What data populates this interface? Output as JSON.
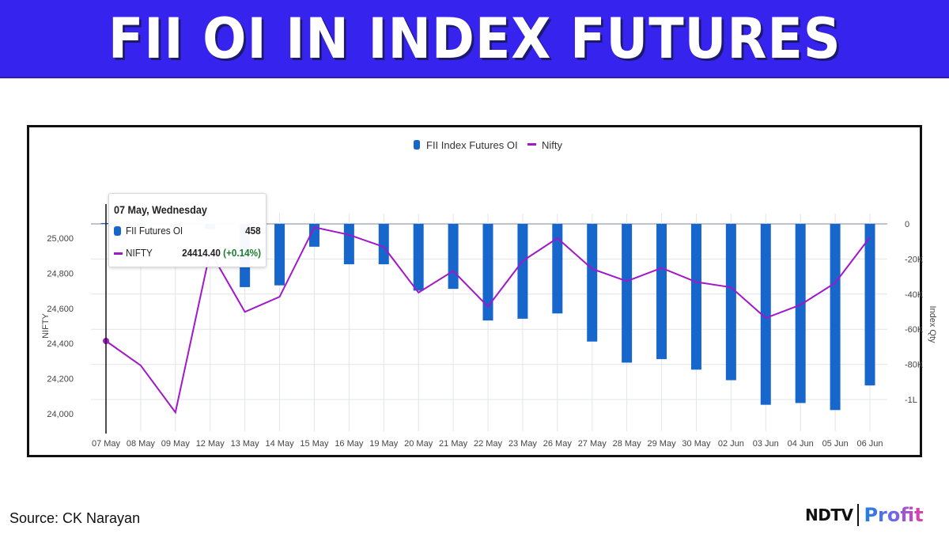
{
  "header": {
    "title": "FII OI IN INDEX FUTURES"
  },
  "colors": {
    "banner": "#3623ee",
    "bar": "#1766cc",
    "line": "#a117c9",
    "positive_change": "#1b7a2f",
    "grid": "#e2e4ea"
  },
  "tooltip": {
    "date": "07 May, Wednesday",
    "rows": [
      {
        "marker": "bar-marker",
        "label": "FII Futures OI",
        "value": "458",
        "change": ""
      },
      {
        "marker": "line-marker",
        "label": "NIFTY",
        "value": "24414.40",
        "change": "(+0.14%)"
      }
    ]
  },
  "footer": {
    "source": "Source: CK Narayan",
    "logo_ndtv": "NDTV",
    "logo_profit": "Profit"
  },
  "chart_data": {
    "type": "bar+line",
    "title": "",
    "legend": [
      "FII Index Futures OI",
      "Nifty"
    ],
    "legend_position": "top-center",
    "categories": [
      "07 May",
      "08 May",
      "09 May",
      "12 May",
      "13 May",
      "14 May",
      "15 May",
      "16 May",
      "19 May",
      "20 May",
      "21 May",
      "22 May",
      "23 May",
      "26 May",
      "27 May",
      "28 May",
      "29 May",
      "30 May",
      "02 Jun",
      "03 Jun",
      "04 Jun",
      "05 Jun",
      "06 Jun"
    ],
    "series": [
      {
        "name": "FII Index Futures OI",
        "type": "bar",
        "axis": "right",
        "values": [
          458,
          -1000,
          -2000,
          -3000,
          -36000,
          -35000,
          -13000,
          -23000,
          -23000,
          -38000,
          -37000,
          -55000,
          -54000,
          -51000,
          -67000,
          -79000,
          -77000,
          -83000,
          -89000,
          -103000,
          -102000,
          -106000,
          -92000
        ]
      },
      {
        "name": "Nifty",
        "type": "line",
        "axis": "left",
        "values": [
          24414.4,
          24275,
          24008,
          24924,
          24580,
          24666,
          25062,
          25019,
          24950,
          24690,
          24813,
          24610,
          24870,
          25000,
          24825,
          24755,
          24830,
          24750,
          24720,
          24545,
          24620,
          24745,
          25005
        ]
      }
    ],
    "ylabel": "NIFTY",
    "ylim": [
      23900,
      25080
    ],
    "yticks": [
      "24,000",
      "24,200",
      "24,400",
      "24,600",
      "24,800",
      "25,000"
    ],
    "y2label": "Index Qty",
    "y2lim": [
      -110000,
      0
    ],
    "y2ticks": [
      "0",
      "-20K",
      "-40K",
      "-60K",
      "-80K",
      "-1L"
    ],
    "grid": true,
    "annotations": [
      "Tooltip at 07 May: FII Futures OI 458, NIFTY 24414.40 (+0.14%)"
    ]
  }
}
